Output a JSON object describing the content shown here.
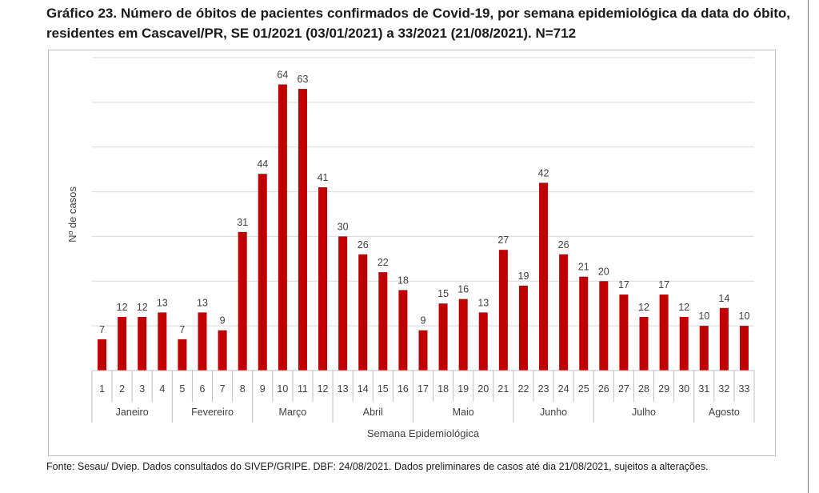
{
  "title": "Gráfico 23. Número de óbitos de pacientes confirmados de Covid-19, por semana epidemiológica da data do óbito, residentes em Cascavel/PR,  SE 01/2021 (03/01/2021) a 33/2021 (21/08/2021). N=712",
  "source": "Fonte: Sesau/ Dviep. Dados consultados do SIVEP/GRIPE. DBF: 24/08/2021. Dados preliminares de casos até dia 21/08/2021, sujeitos a alterações.",
  "chart_data": {
    "type": "bar",
    "xlabel": "Semana Epidemiológica",
    "ylabel": "Nº de casos",
    "ylim": [
      0,
      70
    ],
    "grid": true,
    "bar_color": "#c00000",
    "categories": [
      "1",
      "2",
      "3",
      "4",
      "5",
      "6",
      "7",
      "8",
      "9",
      "10",
      "11",
      "12",
      "13",
      "14",
      "15",
      "16",
      "17",
      "18",
      "19",
      "20",
      "21",
      "22",
      "23",
      "24",
      "25",
      "26",
      "27",
      "28",
      "29",
      "30",
      "31",
      "32",
      "33"
    ],
    "values": [
      7,
      12,
      12,
      13,
      7,
      13,
      9,
      31,
      44,
      64,
      63,
      41,
      30,
      26,
      22,
      18,
      9,
      15,
      16,
      13,
      27,
      19,
      42,
      26,
      21,
      20,
      17,
      12,
      17,
      12,
      10,
      14,
      10
    ],
    "months": [
      {
        "label": "Janeiro",
        "start": 1,
        "end": 4
      },
      {
        "label": "Fevereiro",
        "start": 5,
        "end": 8
      },
      {
        "label": "Março",
        "start": 9,
        "end": 12
      },
      {
        "label": "Abril",
        "start": 13,
        "end": 16
      },
      {
        "label": "Maio",
        "start": 17,
        "end": 21
      },
      {
        "label": "Junho",
        "start": 22,
        "end": 25
      },
      {
        "label": "Julho",
        "start": 26,
        "end": 30
      },
      {
        "label": "Agosto",
        "start": 31,
        "end": 33
      }
    ]
  }
}
